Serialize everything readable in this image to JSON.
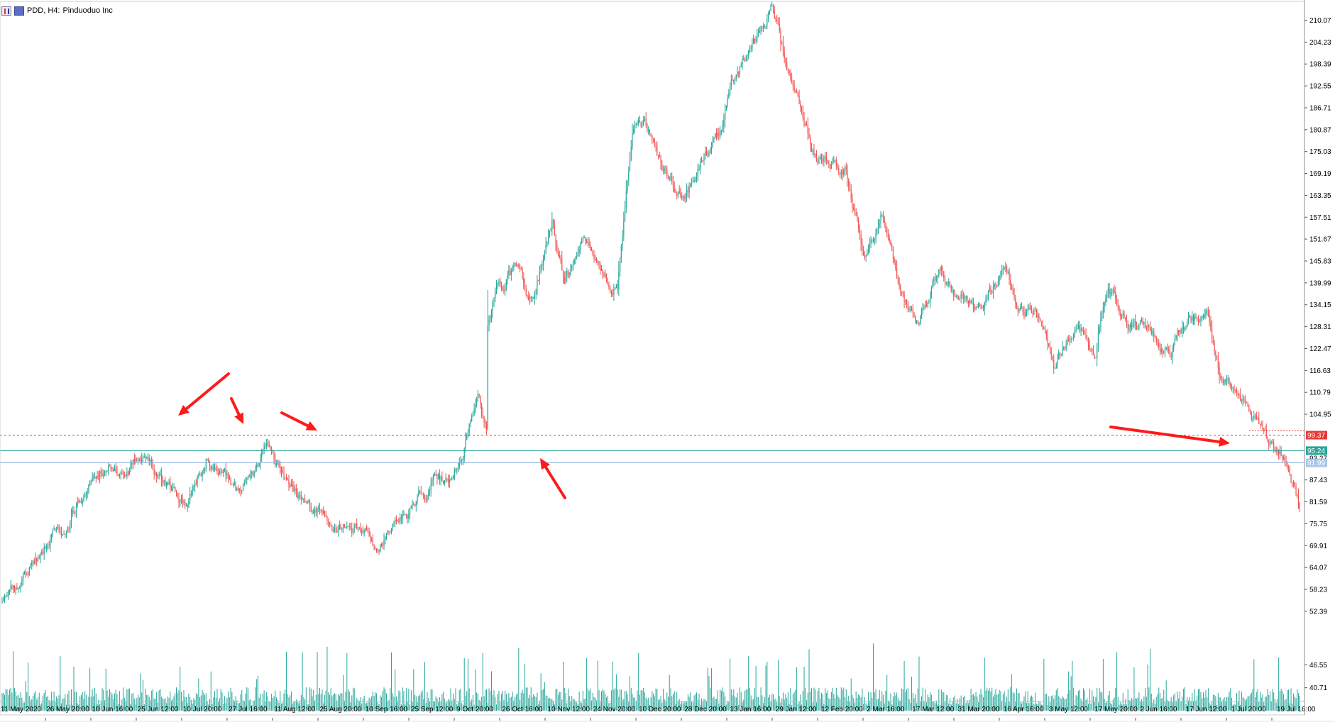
{
  "header": {
    "symbol_label": "PDD, H4:",
    "instrument_name": "Pinduoduo Inc"
  },
  "colors": {
    "bull": "#26a69a",
    "bear": "#ef5350",
    "volume": "#26a69a",
    "resistance_line": "#e53935",
    "support_line": "#26a69a",
    "bid_line": "#8fb5e0",
    "arrow": "#ff1a1a",
    "price_tag_red": "#e53935",
    "price_tag_green": "#26a69a",
    "price_tag_blue": "#a9c6ea"
  },
  "chart_data": {
    "type": "candlestick",
    "timeframe": "H4",
    "ylim": [
      48.2,
      213.0
    ],
    "y_ticks": [
      "210.07",
      "204.23",
      "198.39",
      "192.55",
      "186.71",
      "180.87",
      "175.03",
      "169.19",
      "163.35",
      "157.51",
      "151.67",
      "145.83",
      "139.99",
      "134.15",
      "128.31",
      "122.47",
      "116.63",
      "110.79",
      "104.95",
      "87.43",
      "81.59",
      "75.75",
      "69.91",
      "64.07",
      "58.23",
      "52.39",
      "46.55",
      "40.71"
    ],
    "x_ticks": [
      "11 May 2020",
      "26 May 20:00",
      "10 Jun 16:00",
      "25 Jun 12:00",
      "10 Jul 20:00",
      "27 Jul 16:00",
      "11 Aug 12:00",
      "25 Aug 20:00",
      "10 Sep 16:00",
      "25 Sep 12:00",
      "9 Oct 20:00",
      "26 Oct 16:00",
      "10 Nov 12:00",
      "24 Nov 20:00",
      "10 Dec 20:00",
      "28 Dec 20:00",
      "13 Jan 16:00",
      "29 Jan 12:00",
      "12 Feb 20:00",
      "2 Mar 16:00",
      "17 Mar 12:00",
      "31 Mar 20:00",
      "16 Apr 16:00",
      "3 May 12:00",
      "17 May 20:00",
      "2 Jun 16:00",
      "17 Jun 12:00",
      "1 Jul 20:00",
      "19 Jul 16:00"
    ],
    "price_path": [
      [
        0,
        55
      ],
      [
        10,
        58
      ],
      [
        25,
        66
      ],
      [
        40,
        72
      ],
      [
        55,
        78
      ],
      [
        75,
        89
      ],
      [
        100,
        92
      ],
      [
        115,
        95
      ],
      [
        130,
        88
      ],
      [
        150,
        80
      ],
      [
        165,
        93
      ],
      [
        180,
        91
      ],
      [
        190,
        84
      ],
      [
        215,
        95
      ],
      [
        230,
        87
      ],
      [
        260,
        78
      ],
      [
        290,
        74
      ],
      [
        300,
        71
      ],
      [
        322,
        75
      ],
      [
        350,
        87
      ],
      [
        365,
        88
      ],
      [
        375,
        99
      ],
      [
        385,
        113
      ],
      [
        392,
        100
      ],
      [
        393,
        128
      ],
      [
        400,
        140
      ],
      [
        418,
        143
      ],
      [
        430,
        135
      ],
      [
        445,
        156
      ],
      [
        455,
        140
      ],
      [
        470,
        151
      ],
      [
        485,
        143
      ],
      [
        498,
        139
      ],
      [
        510,
        182
      ],
      [
        520,
        182
      ],
      [
        535,
        170
      ],
      [
        552,
        162
      ],
      [
        570,
        175
      ],
      [
        582,
        180
      ],
      [
        590,
        192
      ],
      [
        610,
        205
      ],
      [
        623,
        212
      ],
      [
        637,
        194
      ],
      [
        660,
        172
      ],
      [
        682,
        170
      ],
      [
        698,
        145
      ],
      [
        712,
        158
      ],
      [
        725,
        140
      ],
      [
        740,
        128
      ],
      [
        760,
        145
      ],
      [
        775,
        136
      ],
      [
        790,
        134
      ],
      [
        812,
        142
      ],
      [
        828,
        133
      ],
      [
        838,
        130
      ],
      [
        852,
        118
      ],
      [
        870,
        130
      ],
      [
        885,
        123
      ],
      [
        895,
        141
      ],
      [
        910,
        130
      ],
      [
        928,
        127
      ],
      [
        945,
        120
      ],
      [
        960,
        130
      ],
      [
        975,
        131
      ],
      [
        985,
        115
      ],
      [
        1005,
        108
      ],
      [
        1020,
        101
      ],
      [
        1030,
        95
      ],
      [
        1040,
        93
      ],
      [
        1050,
        80
      ]
    ],
    "last_candle_index": 1050,
    "levels": {
      "resistance": "99.37",
      "support": "95.24",
      "bid": "91.99",
      "ask": "93.27"
    },
    "volume_panel": {
      "ylim": [
        0,
        100
      ]
    }
  }
}
